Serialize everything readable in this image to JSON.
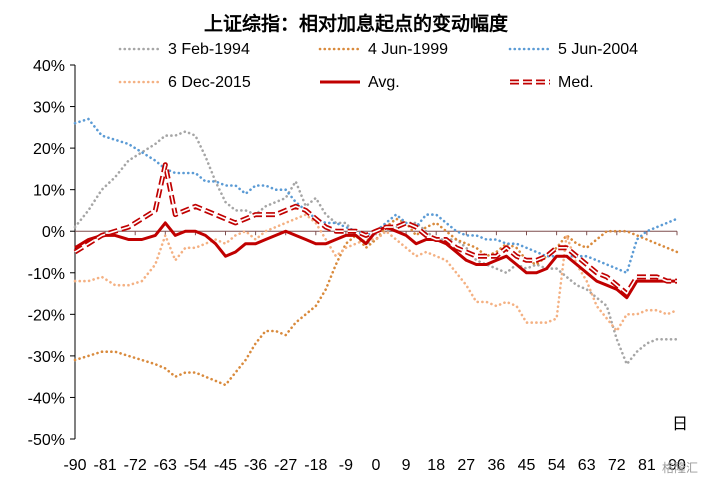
{
  "chart_data": {
    "type": "line",
    "title": "上证综指：相对加息起点的变动幅度",
    "xlabel": "日",
    "ylabel": "",
    "x_ticks": [
      -90,
      -81,
      -72,
      -63,
      -54,
      -45,
      -36,
      -27,
      -18,
      -9,
      0,
      9,
      18,
      27,
      36,
      45,
      54,
      63,
      72,
      81,
      90
    ],
    "x_tick_labels": [
      "-90",
      "-81",
      "-72",
      "-63",
      "-54",
      "-45",
      "-36",
      "-27",
      "-18",
      "-9",
      "0",
      "9",
      "18",
      "27",
      "36",
      "45",
      "54",
      "63",
      "72",
      "81",
      "90"
    ],
    "xlim": [
      -90,
      90
    ],
    "y_ticks": [
      -50,
      -40,
      -30,
      -20,
      -10,
      0,
      10,
      20,
      30,
      40
    ],
    "y_tick_labels": [
      "-50%",
      "-40%",
      "-30%",
      "-20%",
      "-10%",
      "0%",
      "10%",
      "20%",
      "30%",
      "40%"
    ],
    "ylim": [
      -50,
      40
    ],
    "grid": false,
    "legend_position": "top",
    "series": [
      {
        "name": "3 Feb-1994",
        "color": "#a6a6a6",
        "style": "dotted",
        "x": [
          -90,
          -86,
          -82,
          -78,
          -74,
          -70,
          -66,
          -63,
          -60,
          -57,
          -54,
          -51,
          -48,
          -45,
          -42,
          -39,
          -36,
          -33,
          -30,
          -27,
          -24,
          -21,
          -18,
          -15,
          -12,
          -9,
          -6,
          -3,
          0,
          3,
          6,
          9,
          12,
          15,
          18,
          21,
          24,
          27,
          30,
          33,
          36,
          39,
          42,
          45,
          48,
          51,
          54,
          57,
          60,
          63,
          66,
          69,
          72,
          75,
          78,
          81,
          84,
          87,
          90
        ],
        "values": [
          1,
          5,
          10,
          13,
          17,
          19,
          21,
          23,
          23,
          24,
          23,
          18,
          12,
          7,
          5,
          5,
          4,
          6,
          7,
          8,
          12,
          6,
          8,
          4,
          2,
          2,
          -1,
          -3,
          -2,
          0,
          1,
          2,
          2,
          0,
          -2,
          -2,
          -2,
          -4,
          -7,
          -8,
          -9,
          -10,
          -8,
          -9,
          -8,
          -9,
          -9,
          -11,
          -13,
          -14,
          -16,
          -18,
          -26,
          -32,
          -29,
          -27,
          -26,
          -26,
          -26
        ]
      },
      {
        "name": "4 Jun-1999",
        "color": "#d98a3c",
        "style": "dotted",
        "x": [
          -90,
          -86,
          -82,
          -78,
          -74,
          -70,
          -66,
          -63,
          -60,
          -57,
          -54,
          -51,
          -48,
          -45,
          -42,
          -39,
          -36,
          -33,
          -30,
          -27,
          -24,
          -21,
          -18,
          -15,
          -12,
          -9,
          -6,
          -3,
          0,
          3,
          6,
          9,
          12,
          15,
          18,
          21,
          24,
          27,
          30,
          33,
          36,
          39,
          42,
          45,
          48,
          51,
          54,
          57,
          60,
          63,
          66,
          69,
          72,
          75,
          78,
          81,
          84,
          87,
          90
        ],
        "values": [
          -31,
          -30,
          -29,
          -29,
          -30,
          -31,
          -32,
          -33,
          -35,
          -34,
          -34,
          -35,
          -36,
          -37,
          -34,
          -31,
          -27,
          -24,
          -24,
          -25,
          -22,
          -20,
          -18,
          -14,
          -8,
          -3,
          -1,
          -4,
          -2,
          1,
          3,
          2,
          -1,
          1,
          2,
          0,
          -2,
          -3,
          -4,
          -6,
          -5,
          -3,
          -4,
          -7,
          -8,
          -6,
          -4,
          -1,
          -3,
          -4,
          -2,
          0,
          0,
          0,
          -1,
          -2,
          -3,
          -4,
          -5
        ]
      },
      {
        "name": "5 Jun-2004",
        "color": "#5b9bd5",
        "style": "dotted",
        "x": [
          -90,
          -86,
          -82,
          -78,
          -74,
          -70,
          -66,
          -63,
          -60,
          -57,
          -54,
          -51,
          -48,
          -45,
          -42,
          -39,
          -36,
          -33,
          -30,
          -27,
          -24,
          -21,
          -18,
          -15,
          -12,
          -9,
          -6,
          -3,
          0,
          3,
          6,
          9,
          12,
          15,
          18,
          21,
          24,
          27,
          30,
          33,
          36,
          39,
          42,
          45,
          48,
          51,
          54,
          57,
          60,
          63,
          66,
          69,
          72,
          75,
          78,
          81,
          84,
          87,
          90
        ],
        "values": [
          26,
          27,
          23,
          22,
          21,
          19,
          17,
          15,
          14,
          14,
          14,
          12,
          12,
          11,
          11,
          9,
          11,
          11,
          10,
          10,
          7,
          5,
          3,
          2,
          2,
          1,
          0,
          -1,
          0,
          2,
          4,
          2,
          1,
          4,
          4,
          2,
          0,
          -1,
          -1,
          -2,
          -2,
          -3,
          -3,
          -4,
          -5,
          -6,
          -6,
          -6,
          -6,
          -6,
          -7,
          -8,
          -9,
          -10,
          -2,
          0,
          1,
          2,
          3
        ]
      },
      {
        "name": "6 Dec-2015",
        "color": "#f4b183",
        "style": "dotted",
        "x": [
          -90,
          -86,
          -82,
          -78,
          -74,
          -70,
          -66,
          -63,
          -60,
          -57,
          -54,
          -51,
          -48,
          -45,
          -42,
          -39,
          -36,
          -33,
          -30,
          -27,
          -24,
          -21,
          -18,
          -15,
          -12,
          -9,
          -6,
          -3,
          0,
          3,
          6,
          9,
          12,
          15,
          18,
          21,
          24,
          27,
          30,
          33,
          36,
          39,
          42,
          45,
          48,
          51,
          54,
          57,
          60,
          63,
          66,
          69,
          72,
          75,
          78,
          81,
          84,
          87,
          90
        ],
        "values": [
          -12,
          -12,
          -11,
          -13,
          -13,
          -12,
          -8,
          -1,
          -7,
          -4,
          -4,
          -3,
          -2,
          -3,
          -1,
          0,
          -2,
          0,
          1,
          2,
          3,
          4,
          2,
          -2,
          -6,
          -4,
          -3,
          -2,
          -2,
          0,
          -2,
          -4,
          -6,
          -5,
          -6,
          -7,
          -10,
          -13,
          -17,
          -17,
          -18,
          -17,
          -18,
          -22,
          -22,
          -22,
          -21,
          -1,
          -8,
          -12,
          -18,
          -21,
          -24,
          -20,
          -20,
          -19,
          -19,
          -20,
          -19
        ]
      },
      {
        "name": "Avg.",
        "color": "#c00000",
        "style": "solid",
        "x": [
          -90,
          -86,
          -82,
          -78,
          -74,
          -70,
          -66,
          -63,
          -60,
          -57,
          -54,
          -51,
          -48,
          -45,
          -42,
          -39,
          -36,
          -33,
          -30,
          -27,
          -24,
          -21,
          -18,
          -15,
          -12,
          -9,
          -6,
          -3,
          0,
          3,
          6,
          9,
          12,
          15,
          18,
          21,
          24,
          27,
          30,
          33,
          36,
          39,
          42,
          45,
          48,
          51,
          54,
          57,
          60,
          63,
          66,
          69,
          72,
          75,
          78,
          81,
          84,
          87,
          90
        ],
        "values": [
          -4,
          -2,
          -1,
          -1,
          -2,
          -2,
          -1,
          2,
          -1,
          0,
          0,
          -1,
          -3,
          -6,
          -5,
          -3,
          -3,
          -2,
          -1,
          0,
          -1,
          -2,
          -3,
          -3,
          -2,
          -1,
          -1,
          -3,
          0,
          1,
          0,
          -1,
          -3,
          -2,
          -2,
          -3,
          -5,
          -7,
          -8,
          -8,
          -7,
          -6,
          -8,
          -10,
          -10,
          -9,
          -6,
          -6,
          -8,
          -10,
          -12,
          -13,
          -14,
          -16,
          -12,
          -12,
          -12,
          -12,
          -12
        ]
      },
      {
        "name": "Med.",
        "color": "#c00000",
        "style": "double-dash",
        "x": [
          -90,
          -86,
          -82,
          -78,
          -74,
          -70,
          -66,
          -63,
          -60,
          -57,
          -54,
          -51,
          -48,
          -45,
          -42,
          -39,
          -36,
          -33,
          -30,
          -27,
          -24,
          -21,
          -18,
          -15,
          -12,
          -9,
          -6,
          -3,
          0,
          3,
          6,
          9,
          12,
          15,
          18,
          21,
          24,
          27,
          30,
          33,
          36,
          39,
          42,
          45,
          48,
          51,
          54,
          57,
          60,
          63,
          66,
          69,
          72,
          75,
          78,
          81,
          84,
          87,
          90
        ],
        "values": [
          -5,
          -3,
          -1,
          0,
          1,
          3,
          5,
          16,
          4,
          5,
          6,
          5,
          4,
          3,
          2,
          3,
          4,
          4,
          4,
          5,
          6,
          5,
          3,
          1,
          0,
          0,
          0,
          -1,
          0,
          1,
          1,
          2,
          1,
          -1,
          -2,
          -2,
          -4,
          -5,
          -6,
          -6,
          -6,
          -4,
          -6,
          -7,
          -7,
          -6,
          -4,
          -4,
          -6,
          -8,
          -10,
          -11,
          -13,
          -15,
          -11,
          -11,
          -11,
          -12,
          -12
        ]
      }
    ]
  },
  "legend": {
    "items": [
      {
        "label": "3 Feb-1994"
      },
      {
        "label": "4 Jun-1999"
      },
      {
        "label": "5 Jun-2004"
      },
      {
        "label": "6 Dec-2015"
      },
      {
        "label": "Avg."
      },
      {
        "label": "Med."
      }
    ]
  },
  "watermark": {
    "text": "格隆汇"
  }
}
